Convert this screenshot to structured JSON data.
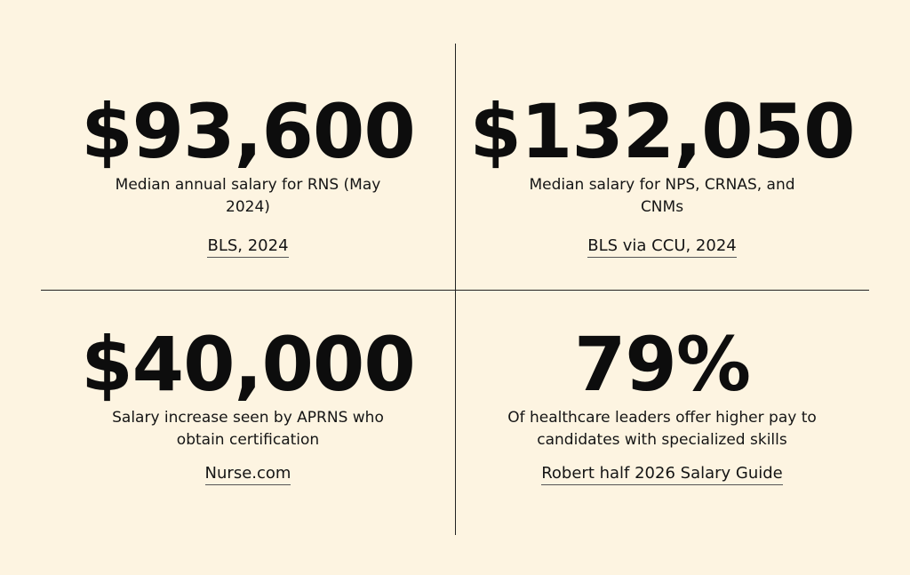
{
  "stats": [
    {
      "value": "$93,600",
      "description": "Median annual salary for RNS (May 2024)",
      "source": "BLS, 2024"
    },
    {
      "value": "$132,050",
      "description": "Median salary for NPS, CRNAS, and CNMs",
      "source": "BLS via CCU, 2024"
    },
    {
      "value": "$40,000",
      "description": "Salary increase seen by APRNS who obtain certification",
      "source": "Nurse.com"
    },
    {
      "value": "79%",
      "description": "Of healthcare leaders offer higher pay to candidates with specialized skills",
      "source": "Robert half 2026 Salary Guide"
    }
  ],
  "colors": {
    "background": "#fdf4e1",
    "text": "#111111",
    "divider": "#222222"
  }
}
